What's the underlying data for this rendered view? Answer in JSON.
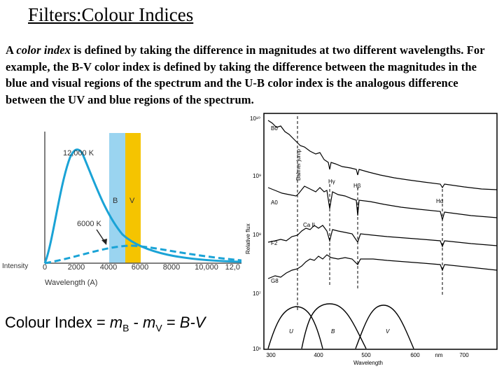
{
  "title": "Filters:Colour Indices",
  "intro": {
    "lead": "A ",
    "term": "color index",
    "body": " is defined by taking the difference in magnitudes  at two different wavelengths.  For example, the B-V color index is defined by taking the difference between the magnitudes in the blue and visual regions of the spectrum and the U-B color index is the analogous difference between the UV and blue regions of the spectrum."
  },
  "blackbody_figure": {
    "hot_label": "12,000 K",
    "cool_label": "6000 K",
    "band_b": "B",
    "band_v": "V",
    "y_label": "Intensity",
    "x_label": "Wavelength (A)",
    "x_ticks": [
      "0",
      "2000",
      "4000",
      "6000",
      "8000",
      "10,000",
      "12,0"
    ],
    "colors": {
      "curve": "#1aa3d6",
      "b_band": "#9ad4f0",
      "v_band": "#f5c400"
    }
  },
  "spectra_figure": {
    "y_label": "Relative flux",
    "y_ticks": [
      "10¹⁰",
      "10⁹",
      "10⁸",
      "10⁷",
      "10¹"
    ],
    "star_types": [
      "B0",
      "A0",
      "F2",
      "G8"
    ],
    "lines": [
      "Balmer jump",
      "Hγ",
      "Hβ",
      "Hα",
      "Ca II"
    ],
    "filters": [
      "U",
      "B",
      "V"
    ],
    "x_ticks": [
      "300",
      "400",
      "500",
      "600",
      "nm",
      "700"
    ],
    "x_label": "Wavelength"
  },
  "formula": {
    "lead": "Colour Index = ",
    "m1": "m",
    "sub1": "B",
    "mid": " - ",
    "m2": "m",
    "sub2": "V",
    "eq": " = ",
    "result": "B-V"
  }
}
